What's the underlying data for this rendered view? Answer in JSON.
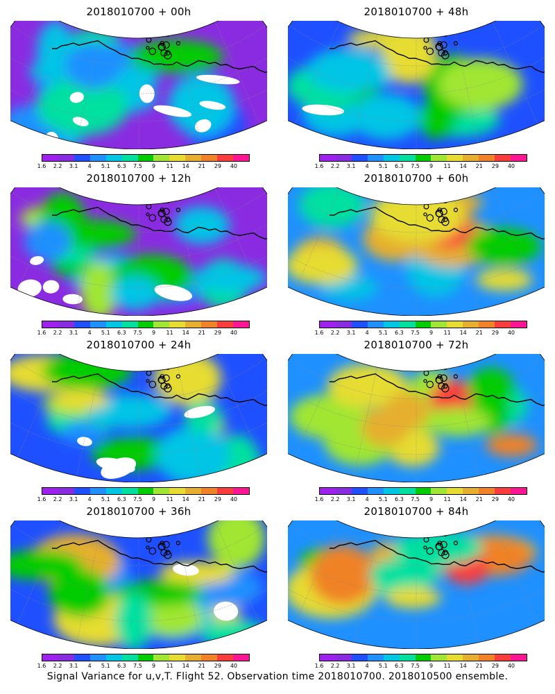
{
  "caption": "Signal Variance for u,v,T. Flight 52. Observation time 2018010700. 2018010500 ensemble.",
  "colorbar": {
    "ticks": [
      "1.6",
      "2.2",
      "3.1",
      "4",
      "5.1",
      "6.3",
      "7.5",
      "9",
      "11",
      "14",
      "21",
      "29",
      "40"
    ],
    "colors": [
      "#a020f0",
      "#8a2be2",
      "#1e50ff",
      "#1e90ff",
      "#00c5e5",
      "#00e0a0",
      "#00cc00",
      "#a0e632",
      "#e6dc32",
      "#e6af2d",
      "#f08228",
      "#fa3c3c",
      "#ff1493"
    ],
    "below_min_color": "#ffffff"
  },
  "panels": [
    {
      "title": "2018010700 + 00h",
      "intensity": 0.15
    },
    {
      "title": "2018010700 + 48h",
      "intensity": 0.55
    },
    {
      "title": "2018010700 + 12h",
      "intensity": 0.3
    },
    {
      "title": "2018010700 + 60h",
      "intensity": 0.65
    },
    {
      "title": "2018010700 + 24h",
      "intensity": 0.4
    },
    {
      "title": "2018010700 + 72h",
      "intensity": 0.75
    },
    {
      "title": "2018010700 + 36h",
      "intensity": 0.5
    },
    {
      "title": "2018010700 + 84h",
      "intensity": 0.85
    }
  ]
}
